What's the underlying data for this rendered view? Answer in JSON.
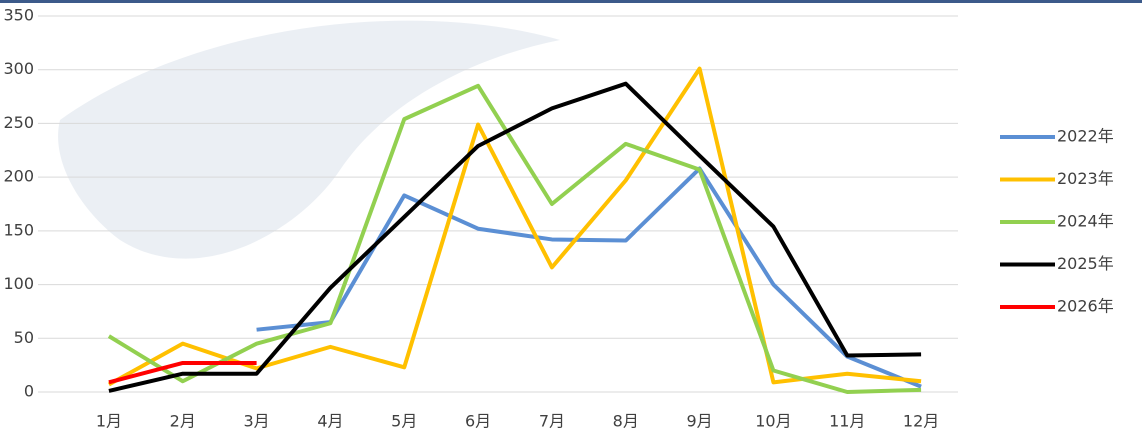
{
  "chart_data": {
    "type": "line",
    "categories": [
      "1月",
      "2月",
      "3月",
      "4月",
      "5月",
      "6月",
      "7月",
      "8月",
      "9月",
      "10月",
      "11月",
      "12月"
    ],
    "series": [
      {
        "name": "2022年",
        "color": "#5b8fd4",
        "values": [
          null,
          null,
          58,
          65,
          183,
          152,
          142,
          141,
          208,
          100,
          33,
          5
        ]
      },
      {
        "name": "2023年",
        "color": "#ffc000",
        "values": [
          7,
          45,
          22,
          42,
          23,
          249,
          116,
          197,
          301,
          9,
          17,
          10
        ]
      },
      {
        "name": "2024年",
        "color": "#92d050",
        "values": [
          52,
          10,
          45,
          64,
          254,
          285,
          175,
          231,
          207,
          20,
          0,
          2
        ]
      },
      {
        "name": "2025年",
        "color": "#000000",
        "values": [
          1,
          17,
          17,
          97,
          163,
          229,
          264,
          287,
          220,
          154,
          34,
          35
        ]
      },
      {
        "name": "2026年",
        "color": "#ff0000",
        "values": [
          9,
          27,
          27,
          null,
          null,
          null,
          null,
          null,
          null,
          null,
          null,
          null
        ]
      }
    ],
    "ylim": [
      0,
      350
    ],
    "yticks": [
      0,
      50,
      100,
      150,
      200,
      250,
      300,
      350
    ],
    "grid": true,
    "legend": "right"
  }
}
